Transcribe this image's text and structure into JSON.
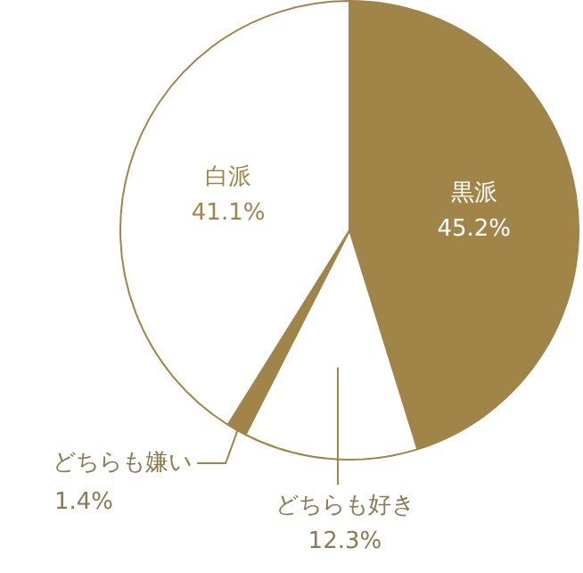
{
  "chart_data": {
    "type": "pie",
    "categories": [
      "黒派",
      "どちらも好き",
      "どちらも嫌い",
      "白派"
    ],
    "values": [
      45.2,
      12.3,
      1.4,
      41.1
    ],
    "value_labels": [
      "45.2%",
      "12.3%",
      "1.4%",
      "41.1%"
    ],
    "colors": [
      "#a08448",
      "#ffffff",
      "#a08448",
      "#ffffff"
    ],
    "legend": false
  }
}
